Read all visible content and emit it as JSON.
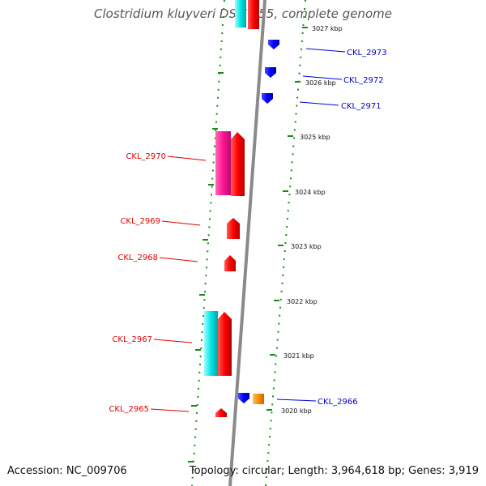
{
  "title": "Clostridium kluyveri DSM 555, complete genome",
  "footer": {
    "accession": "Accession: NC_009706",
    "topology": "Topology: circular; Length: 3,964,618 bp; Genes: 3,919"
  },
  "colors": {
    "backbone": "#8a8a8a",
    "forward_gene": "#ff0000",
    "reverse_gene": "#0000ff",
    "cyan_feature": "#00e5e5",
    "magenta_feature": "#ff1493",
    "orange_feature": "#ff8c00",
    "tick_marks": "#1a8a1a",
    "forward_label": "#e00000",
    "reverse_label": "#0000cc"
  },
  "scale_ticks": [
    {
      "label": "3027 kbp"
    },
    {
      "label": "3026 kbp"
    },
    {
      "label": "3025 kbp"
    },
    {
      "label": "3024 kbp"
    },
    {
      "label": "3023 kbp"
    },
    {
      "label": "3022 kbp"
    },
    {
      "label": "3021 kbp"
    },
    {
      "label": "3020 kbp"
    }
  ],
  "reverse_genes": [
    {
      "label": "CKL_2973"
    },
    {
      "label": "CKL_2972"
    },
    {
      "label": "CKL_2971"
    },
    {
      "label": "CKL_2966"
    }
  ],
  "forward_genes": [
    {
      "label": "CKL_2970"
    },
    {
      "label": "CKL_2969"
    },
    {
      "label": "CKL_2968"
    },
    {
      "label": "CKL_2967"
    },
    {
      "label": "CKL_2965"
    }
  ]
}
